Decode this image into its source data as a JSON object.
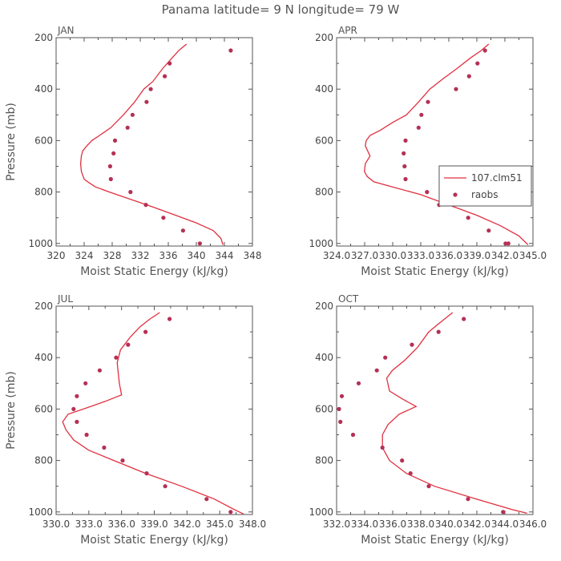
{
  "title": "Panama  latitude= 9 N longitude= 79 W",
  "colors": {
    "model": "#e0303f",
    "obs": "#b53055",
    "axis": "#555555"
  },
  "chart_data": [
    {
      "type": "line",
      "panel": "JAN",
      "xlabel": "Moist Static Energy (kJ/kg)",
      "ylabel": "Pressure (mb)",
      "xlim": [
        320,
        348
      ],
      "ylim": [
        1010,
        200
      ],
      "xticks": [
        320,
        324,
        328,
        332,
        336,
        340,
        344,
        348
      ],
      "xtick_labels": [
        "320",
        "324",
        "328",
        "332",
        "336",
        "340",
        "344",
        "348"
      ],
      "yticks": [
        200,
        400,
        600,
        800,
        1000
      ],
      "ytick_labels": [
        "200",
        "400",
        "600",
        "800",
        "1000"
      ],
      "legend": null,
      "series": [
        {
          "name": "107.clm51",
          "kind": "line",
          "x": [
            338.6,
            337.5,
            336.5,
            335.2,
            333.8,
            332.5,
            331.2,
            329.6,
            327.8,
            326.2,
            325.1,
            324.4,
            323.8,
            323.6,
            323.5,
            323.6,
            324.0,
            324.5,
            325.6,
            327.6,
            330.8,
            334.0,
            337.0,
            340.0,
            342.4,
            343.5,
            343.8
          ],
          "y": [
            225,
            250,
            280,
            320,
            370,
            400,
            450,
            500,
            550,
            580,
            600,
            620,
            640,
            660,
            690,
            720,
            750,
            760,
            780,
            800,
            830,
            860,
            890,
            920,
            950,
            980,
            1005
          ]
        },
        {
          "name": "raobs",
          "kind": "scatter",
          "x": [
            344.9,
            336.2,
            335.5,
            333.5,
            332.9,
            330.9,
            330.2,
            328.4,
            328.2,
            327.7,
            327.8,
            330.6,
            332.8,
            335.3,
            338.1,
            340.5
          ],
          "y": [
            250,
            300,
            350,
            400,
            450,
            500,
            550,
            600,
            650,
            700,
            750,
            800,
            850,
            900,
            950,
            1000
          ]
        }
      ]
    },
    {
      "type": "line",
      "panel": "APR",
      "xlabel": "Moist Static Energy (kJ/kg)",
      "ylabel": "",
      "xlim": [
        324.03,
        345.03
      ],
      "ylim": [
        1010,
        200
      ],
      "xticks": [
        324.03,
        327.03,
        330.03,
        333.03,
        336.03,
        339.03,
        342.03,
        345.03
      ],
      "xtick_labels": [
        "324.0",
        "327.0",
        "330.0",
        "333.0",
        "336.0",
        "339.0",
        "342.0",
        "345.0"
      ],
      "yticks": [
        200,
        400,
        600,
        800,
        1000
      ],
      "ytick_labels": [
        "200",
        "400",
        "600",
        "800",
        "1000"
      ],
      "legend": "right-middle",
      "series": [
        {
          "name": "107.clm51",
          "kind": "line",
          "x": [
            340.3,
            339.5,
            338.3,
            336.9,
            335.4,
            334.0,
            332.8,
            331.5,
            330.0,
            328.7,
            327.6,
            327.2,
            327.1,
            327.6,
            327.1,
            327.0,
            327.3,
            328.0,
            330.0,
            333.0,
            336.0,
            339.0,
            341.5,
            343.5,
            344.5
          ],
          "y": [
            225,
            250,
            280,
            320,
            360,
            400,
            450,
            500,
            530,
            560,
            580,
            600,
            620,
            660,
            690,
            720,
            740,
            760,
            780,
            810,
            850,
            890,
            930,
            970,
            1005
          ]
        },
        {
          "name": "raobs",
          "kind": "scatter",
          "x": [
            339.9,
            339.1,
            338.2,
            336.8,
            333.8,
            333.1,
            332.8,
            331.4,
            331.2,
            331.3,
            331.4,
            333.7,
            335.0,
            338.1,
            340.3,
            342.1,
            342.4
          ],
          "y": [
            250,
            300,
            350,
            400,
            450,
            500,
            550,
            600,
            650,
            700,
            750,
            800,
            850,
            900,
            950,
            1000,
            1000
          ]
        }
      ]
    },
    {
      "type": "line",
      "panel": "JUL",
      "xlabel": "Moist Static Energy (kJ/kg)",
      "ylabel": "Pressure (mb)",
      "xlim": [
        330.0,
        348.0
      ],
      "ylim": [
        1010,
        200
      ],
      "xticks": [
        330.0,
        333.0,
        336.0,
        339.0,
        342.0,
        345.0,
        348.0
      ],
      "xtick_labels": [
        "330.0",
        "333.0",
        "336.0",
        "339.0",
        "342.0",
        "345.0",
        "348.0"
      ],
      "yticks": [
        200,
        400,
        600,
        800,
        1000
      ],
      "ytick_labels": [
        "200",
        "400",
        "600",
        "800",
        "1000"
      ],
      "legend": null,
      "series": [
        {
          "name": "107.clm51",
          "kind": "line",
          "x": [
            339.5,
            338.6,
            337.7,
            336.8,
            335.9,
            335.6,
            335.8,
            336.0,
            334.5,
            332.5,
            331.1,
            330.6,
            330.9,
            331.6,
            333.0,
            335.3,
            338.2,
            341.5,
            344.5,
            346.3,
            347.2
          ],
          "y": [
            225,
            250,
            280,
            320,
            370,
            420,
            500,
            545,
            570,
            600,
            620,
            650,
            680,
            720,
            760,
            800,
            850,
            900,
            950,
            990,
            1008
          ]
        },
        {
          "name": "raobs",
          "kind": "scatter",
          "x": [
            340.4,
            338.2,
            336.6,
            335.5,
            334.0,
            332.7,
            331.9,
            331.6,
            331.9,
            332.8,
            334.4,
            336.1,
            338.3,
            340.0,
            343.8,
            346.0
          ],
          "y": [
            250,
            300,
            350,
            400,
            450,
            500,
            550,
            600,
            650,
            700,
            750,
            800,
            850,
            900,
            950,
            1000
          ]
        }
      ]
    },
    {
      "type": "line",
      "panel": "OCT",
      "xlabel": "Moist Static Energy (kJ/kg)",
      "ylabel": "",
      "xlim": [
        332.03,
        346.03
      ],
      "ylim": [
        1010,
        200
      ],
      "xticks": [
        332.03,
        334.03,
        336.03,
        338.03,
        340.03,
        342.03,
        344.03,
        346.03
      ],
      "xtick_labels": [
        "332.0",
        "334.0",
        "336.0",
        "338.0",
        "340.0",
        "342.0",
        "344.0",
        "346.0"
      ],
      "yticks": [
        200,
        400,
        600,
        800,
        1000
      ],
      "ytick_labels": [
        "200",
        "400",
        "600",
        "800",
        "1000"
      ],
      "legend": null,
      "series": [
        {
          "name": "107.clm51",
          "kind": "line",
          "x": [
            340.3,
            339.5,
            338.6,
            337.8,
            336.9,
            336.0,
            335.6,
            335.8,
            336.7,
            337.7,
            336.5,
            335.7,
            335.3,
            335.3,
            335.8,
            337.0,
            339.0,
            342.0,
            344.5,
            345.6
          ],
          "y": [
            225,
            260,
            300,
            360,
            410,
            450,
            480,
            530,
            560,
            590,
            620,
            660,
            700,
            750,
            800,
            850,
            900,
            950,
            990,
            1005
          ]
        },
        {
          "name": "raobs",
          "kind": "scatter",
          "x": [
            341.1,
            339.3,
            337.4,
            335.5,
            334.9,
            333.6,
            332.4,
            332.2,
            332.3,
            333.2,
            335.3,
            336.7,
            337.3,
            338.6,
            341.4,
            343.9
          ],
          "y": [
            250,
            300,
            350,
            400,
            450,
            500,
            550,
            600,
            650,
            700,
            750,
            800,
            850,
            900,
            950,
            1000
          ]
        }
      ]
    }
  ]
}
